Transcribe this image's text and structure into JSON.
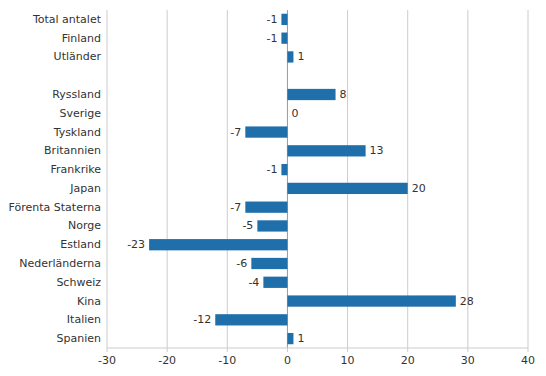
{
  "chart_data": {
    "type": "bar",
    "orientation": "horizontal",
    "categories": [
      "Total antalet",
      "Finland",
      "Utländer",
      null,
      "Ryssland",
      "Sverige",
      "Tyskland",
      "Britannien",
      "Frankrike",
      "Japan",
      "Förenta Staterna",
      "Norge",
      "Estland",
      "Nederländerna",
      "Schweiz",
      "Kina",
      "Italien",
      "Spanien"
    ],
    "values": [
      -1,
      -1,
      1,
      null,
      8,
      0,
      -7,
      13,
      -1,
      20,
      -7,
      -5,
      -23,
      -6,
      -4,
      28,
      -12,
      1
    ],
    "color": "#1f6faa",
    "xlim": [
      -30,
      40
    ],
    "xticks": [
      -30,
      -20,
      -10,
      0,
      10,
      20,
      30,
      40
    ],
    "grid": true,
    "data_labels": true
  }
}
